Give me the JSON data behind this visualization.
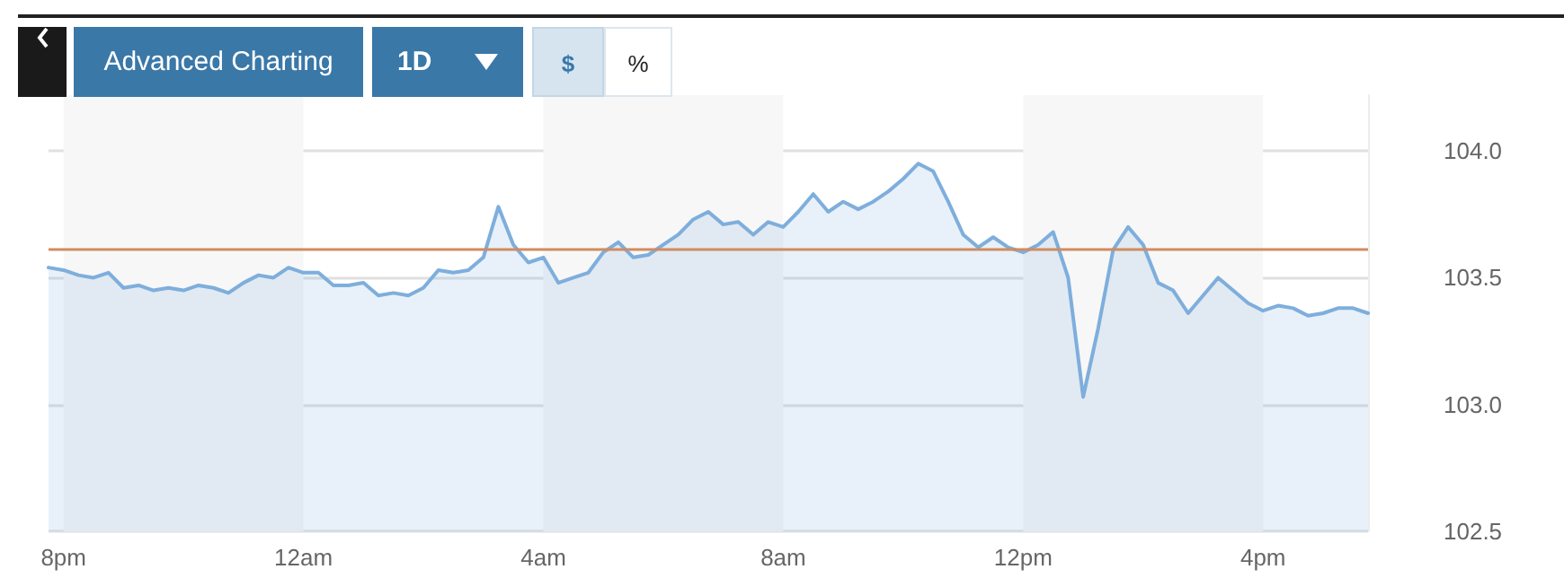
{
  "chart_data": {
    "type": "area",
    "annotations": [
      "Advanced Charting",
      "1D",
      "$",
      "%"
    ],
    "categories": [
      null,
      "8pm",
      null,
      null,
      null,
      null,
      null,
      null,
      null,
      null,
      null,
      null,
      null,
      null,
      null,
      null,
      null,
      "12am",
      null,
      null,
      null,
      null,
      null,
      null,
      null,
      null,
      null,
      null,
      null,
      null,
      null,
      null,
      null,
      "4am",
      null,
      null,
      null,
      null,
      null,
      null,
      null,
      null,
      null,
      null,
      null,
      null,
      null,
      null,
      null,
      "8am",
      null,
      null,
      null,
      null,
      null,
      null,
      null,
      null,
      null,
      null,
      null,
      null,
      null,
      null,
      null,
      "12pm",
      null,
      null,
      null,
      null,
      null,
      null,
      null,
      null,
      null,
      null,
      null,
      null,
      null,
      null,
      null,
      "4pm",
      null,
      null,
      null,
      null,
      null,
      null,
      null
    ],
    "ylim": [
      102.5,
      104.22
    ],
    "yticks": [
      102.5,
      {
        "value": 103,
        "label": "103.0"
      },
      103.5,
      {
        "value": 104,
        "label": "104.0"
      }
    ],
    "grid": "y",
    "marker": "none",
    "line_style": "solid",
    "ref_lines": [
      {
        "axis": "y",
        "value": 103.61,
        "label": null,
        "color": "#d08c60"
      }
    ],
    "bands": [
      {
        "axis": "x",
        "from": "8pm",
        "to": "12am",
        "label": null,
        "color": "#f7f7f7"
      },
      {
        "axis": "x",
        "from": "4am",
        "to": "8am",
        "label": null,
        "color": "#f7f7f7"
      },
      {
        "axis": "x",
        "from": "12pm",
        "to": "4pm",
        "label": null,
        "color": "#f7f7f7"
      }
    ],
    "series": [
      {
        "color": "#7eaedc",
        "values": [
          103.54,
          103.53,
          103.51,
          103.5,
          103.52,
          103.46,
          103.47,
          103.45,
          103.46,
          103.45,
          103.47,
          103.46,
          103.44,
          103.48,
          103.51,
          103.5,
          103.54,
          103.52,
          103.52,
          103.47,
          103.47,
          103.48,
          103.43,
          103.44,
          103.43,
          103.46,
          103.53,
          103.52,
          103.53,
          103.58,
          103.78,
          103.63,
          103.56,
          103.58,
          103.48,
          103.5,
          103.52,
          103.6,
          103.64,
          103.58,
          103.59,
          103.63,
          103.67,
          103.73,
          103.76,
          103.71,
          103.72,
          103.67,
          103.72,
          103.7,
          103.76,
          103.83,
          103.76,
          103.8,
          103.77,
          103.8,
          103.84,
          103.89,
          103.95,
          103.92,
          103.8,
          103.67,
          103.62,
          103.66,
          103.62,
          103.6,
          103.63,
          103.68,
          103.5,
          103.03,
          103.3,
          103.61,
          103.7,
          103.63,
          103.48,
          103.45,
          103.36,
          103.43,
          103.5,
          103.45,
          103.4,
          103.37,
          103.39,
          103.38,
          103.35,
          103.36,
          103.38,
          103.38,
          103.36
        ]
      }
    ]
  }
}
